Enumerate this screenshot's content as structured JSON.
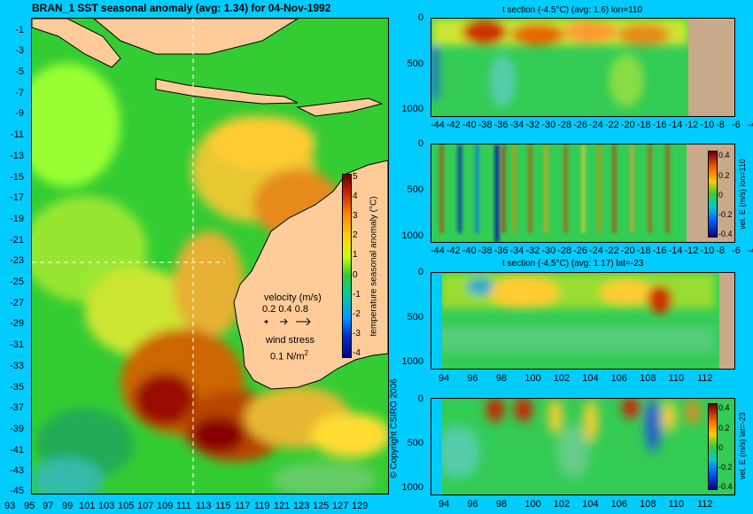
{
  "main": {
    "title": "BRAN_1 SST seasonal anomaly (avg: 1.34) for 04-Nov-1992",
    "y_ticks": [
      "-1",
      "-3",
      "-5",
      "-7",
      "-9",
      "-11",
      "-13",
      "-15",
      "-17",
      "-19",
      "-21",
      "-23",
      "-25",
      "-27",
      "-29",
      "-31",
      "-33",
      "-35",
      "-37",
      "-39",
      "-41",
      "-43",
      "-45"
    ],
    "x_ticks": [
      "93",
      "95",
      "97",
      "99",
      "101",
      "103",
      "105",
      "107",
      "109",
      "111",
      "113",
      "115",
      "117",
      "119",
      "121",
      "123",
      "125",
      "127",
      "129"
    ],
    "colorbar_ticks": [
      "5",
      "4",
      "3",
      "2",
      "1",
      "0",
      "-1",
      "-2",
      "-3",
      "-4"
    ],
    "colorbar_label": "temperature seasonal anomaly (°C)",
    "velocity_label": "velocity (m/s)",
    "velocity_scale": "0.2 0.4 0.8",
    "wind_label": "wind stress",
    "wind_scale_value": "0.1 N/m",
    "wind_scale_exp": "2",
    "copyright": "© Copyright CSIRO 2006"
  },
  "panel1": {
    "title": "t section (-4.5°C) (avg: 1.6) lon=110",
    "x_ticks": [
      "-44",
      "-42",
      "-40",
      "-38",
      "-36",
      "-34",
      "-32",
      "-30",
      "-28",
      "-26",
      "-24",
      "-22",
      "-20",
      "-18",
      "-16",
      "-14",
      "-12",
      "-10",
      "-8",
      "-6",
      "-4"
    ],
    "y_ticks": [
      "0",
      "500",
      "1000"
    ]
  },
  "panel2": {
    "x_ticks": [
      "-44",
      "-42",
      "-40",
      "-38",
      "-36",
      "-34",
      "-32",
      "-30",
      "-28",
      "-26",
      "-24",
      "-22",
      "-20",
      "-18",
      "-16",
      "-14",
      "-12",
      "-10",
      "-8",
      "-6",
      "-4"
    ],
    "y_ticks": [
      "0",
      "500",
      "1000"
    ],
    "colorbar_ticks": [
      "0.4",
      "0.2",
      "0",
      "-0.2",
      "-0.4"
    ],
    "colorbar_label": "vel. E (m/s) lon=110"
  },
  "panel3": {
    "title": "t section (-4.5°C) (avg: 1.17) lat=-23",
    "x_ticks": [
      "94",
      "96",
      "98",
      "100",
      "102",
      "104",
      "106",
      "108",
      "110",
      "112"
    ],
    "y_ticks": [
      "0",
      "500",
      "1000"
    ]
  },
  "panel4": {
    "x_ticks": [
      "94",
      "96",
      "98",
      "100",
      "102",
      "104",
      "106",
      "108",
      "110",
      "112"
    ],
    "y_ticks": [
      "0",
      "500",
      "1000"
    ],
    "colorbar_ticks": [
      "0.4",
      "0.2",
      "0",
      "-0.2",
      "-0.4"
    ],
    "colorbar_label": "vel. E (m/s) lat=-23"
  },
  "chart_data": [
    {
      "type": "heatmap",
      "title": "BRAN_1 SST seasonal anomaly (avg: 1.34) for 04-Nov-1992",
      "xlim": [
        93,
        130
      ],
      "ylim": [
        -45,
        0
      ],
      "colorbar_range": [
        -4,
        5
      ],
      "colorbar_label": "temperature seasonal anomaly (°C)",
      "crosshair": {
        "lon": 110,
        "lat": -23
      }
    },
    {
      "type": "heatmap",
      "title": "t section (-4.5°C) (avg: 1.6) lon=110",
      "xlim": [
        -45,
        -2
      ],
      "ylim": [
        1050,
        0
      ]
    },
    {
      "type": "heatmap",
      "xlim": [
        -45,
        -2
      ],
      "ylim": [
        1050,
        0
      ],
      "colorbar_range": [
        -0.4,
        0.4
      ],
      "colorbar_label": "vel. E (m/s) lon=110"
    },
    {
      "type": "heatmap",
      "title": "t section (-4.5°C) (avg: 1.17) lat=-23",
      "xlim": [
        93,
        114
      ],
      "ylim": [
        1050,
        0
      ]
    },
    {
      "type": "heatmap",
      "xlim": [
        93,
        114
      ],
      "ylim": [
        1050,
        0
      ],
      "colorbar_range": [
        -0.4,
        0.4
      ],
      "colorbar_label": "vel. E (m/s) lat=-23"
    }
  ]
}
